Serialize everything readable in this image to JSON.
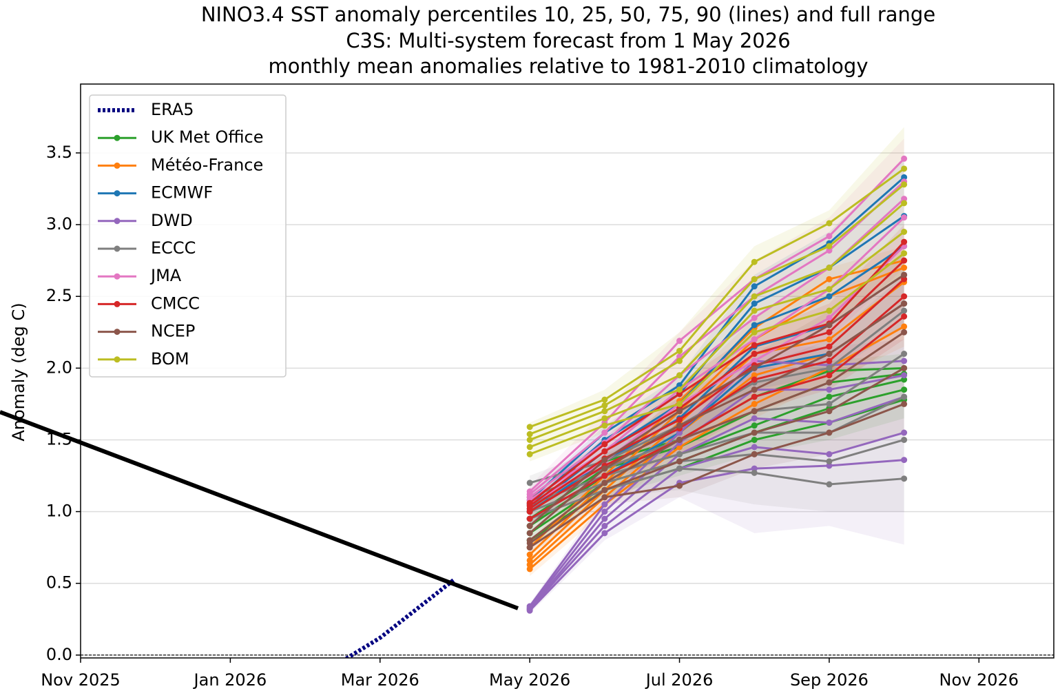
{
  "chart_data": {
    "type": "line",
    "title": [
      "NINO3.4 SST anomaly percentiles 10, 25, 50, 75, 90 (lines) and full range",
      "C3S: Multi-system forecast from 1 May 2026",
      "monthly mean anomalies relative to 1981-2010 climatology"
    ],
    "y_label": "Anomaly (deg C)",
    "xlim": [
      "2025-11",
      "2026-12"
    ],
    "xticks": [
      {
        "value": "2025-11",
        "label": "Nov 2025"
      },
      {
        "value": "2026-01",
        "label": "Jan 2026"
      },
      {
        "value": "2026-03",
        "label": "Mar 2026"
      },
      {
        "value": "2026-05",
        "label": "May 2026"
      },
      {
        "value": "2026-07",
        "label": "Jul 2026"
      },
      {
        "value": "2026-09",
        "label": "Sep 2026"
      },
      {
        "value": "2026-11",
        "label": "Nov 2026"
      }
    ],
    "ylim": [
      -0.02,
      3.98
    ],
    "yticks": [
      {
        "value": 0,
        "label": "0.0"
      },
      0.5,
      {
        "value": 1,
        "label": "1.0"
      },
      1.5,
      {
        "value": 2,
        "label": "2.0"
      },
      2.5,
      {
        "value": 3,
        "label": "3.0"
      },
      3.5
    ],
    "grid": true,
    "hline": 0,
    "legend": "upper left",
    "series": [
      {
        "name": "ERA5",
        "color": "#000080",
        "style": "dotted",
        "x": [
          "2026-02",
          "2026-03",
          "2026-04"
        ],
        "values": [
          -0.2,
          0.12,
          0.53
        ]
      },
      {
        "name": "UK Met Office",
        "color": "#2ca02c",
        "x": [
          "2026-05",
          "2026-06",
          "2026-07",
          "2026-08",
          "2026-09",
          "2026-10"
        ],
        "lines": [
          [
            0.8,
            1.15,
            1.3,
            1.5,
            1.62,
            1.78
          ],
          [
            0.85,
            1.2,
            1.35,
            1.55,
            1.72,
            1.85
          ],
          [
            0.9,
            1.25,
            1.4,
            1.6,
            1.8,
            1.92
          ],
          [
            0.95,
            1.3,
            1.45,
            1.7,
            1.9,
            1.96
          ],
          [
            1.0,
            1.35,
            1.5,
            1.8,
            1.98,
            2.0
          ]
        ],
        "range": {
          "low": [
            0.75,
            1.1,
            1.25,
            1.4,
            1.5,
            1.65
          ],
          "high": [
            1.05,
            1.4,
            1.6,
            1.9,
            2.05,
            2.1
          ]
        }
      },
      {
        "name": "Météo-France",
        "color": "#ff7f0e",
        "x": [
          "2026-05",
          "2026-06",
          "2026-07",
          "2026-08",
          "2026-09",
          "2026-10"
        ],
        "lines": [
          [
            0.6,
            1.05,
            1.45,
            1.75,
            2.0,
            2.29
          ],
          [
            0.63,
            1.1,
            1.55,
            1.95,
            2.1,
            2.45
          ],
          [
            0.66,
            1.15,
            1.62,
            2.1,
            2.2,
            2.6
          ],
          [
            0.7,
            1.2,
            1.7,
            2.2,
            2.5,
            2.7
          ],
          [
            0.75,
            1.25,
            1.77,
            2.28,
            2.62,
            2.75
          ]
        ],
        "range": {
          "low": [
            0.55,
            1.0,
            1.4,
            1.65,
            1.9,
            2.15
          ],
          "high": [
            0.8,
            1.3,
            1.85,
            2.35,
            2.7,
            2.85
          ]
        }
      },
      {
        "name": "ECMWF",
        "color": "#1f77b4",
        "x": [
          "2026-05",
          "2026-06",
          "2026-07",
          "2026-08",
          "2026-09",
          "2026-10"
        ],
        "lines": [
          [
            0.95,
            1.25,
            1.55,
            2.0,
            2.1,
            2.45
          ],
          [
            1.0,
            1.35,
            1.65,
            2.15,
            2.3,
            2.65
          ],
          [
            1.02,
            1.42,
            1.75,
            2.3,
            2.5,
            2.85
          ],
          [
            1.05,
            1.5,
            1.82,
            2.45,
            2.7,
            3.06
          ],
          [
            1.08,
            1.55,
            1.88,
            2.57,
            2.87,
            3.33
          ]
        ],
        "range": {
          "low": [
            0.9,
            1.2,
            1.45,
            1.85,
            1.95,
            2.3
          ],
          "high": [
            1.12,
            1.6,
            1.95,
            2.65,
            2.95,
            3.45
          ]
        }
      },
      {
        "name": "DWD",
        "color": "#9467bd",
        "x": [
          "2026-05",
          "2026-06",
          "2026-07",
          "2026-08",
          "2026-09",
          "2026-10"
        ],
        "lines": [
          [
            0.31,
            0.85,
            1.2,
            1.3,
            1.32,
            1.36
          ],
          [
            0.32,
            0.9,
            1.3,
            1.45,
            1.4,
            1.55
          ],
          [
            0.32,
            0.95,
            1.4,
            1.65,
            1.62,
            1.8
          ],
          [
            0.33,
            1.0,
            1.48,
            1.85,
            1.85,
            1.95
          ],
          [
            0.34,
            1.05,
            1.55,
            2.05,
            2.02,
            2.05
          ]
        ],
        "range": {
          "low": [
            0.29,
            0.8,
            1.1,
            0.85,
            0.9,
            0.77
          ],
          "high": [
            0.36,
            1.1,
            1.65,
            2.15,
            2.15,
            2.2
          ]
        }
      },
      {
        "name": "ECCC",
        "color": "#7f7f7f",
        "x": [
          "2026-05",
          "2026-06",
          "2026-07",
          "2026-08",
          "2026-09",
          "2026-10"
        ],
        "lines": [
          [
            0.95,
            1.15,
            1.3,
            1.27,
            1.19,
            1.23
          ],
          [
            1.0,
            1.2,
            1.35,
            1.4,
            1.35,
            1.5
          ],
          [
            1.05,
            1.25,
            1.4,
            1.55,
            1.55,
            1.8
          ],
          [
            1.1,
            1.3,
            1.5,
            1.7,
            1.75,
            2.1
          ],
          [
            1.2,
            1.35,
            1.6,
            1.9,
            2.0,
            2.4
          ]
        ],
        "range": {
          "low": [
            0.9,
            1.1,
            1.15,
            1.05,
            1.0,
            1.0
          ],
          "high": [
            1.25,
            1.45,
            1.7,
            2.0,
            2.2,
            2.65
          ]
        }
      },
      {
        "name": "JMA",
        "color": "#e377c2",
        "x": [
          "2026-05",
          "2026-06",
          "2026-07",
          "2026-08",
          "2026-09",
          "2026-10"
        ],
        "lines": [
          [
            1.05,
            1.35,
            1.75,
            2.05,
            2.35,
            2.85
          ],
          [
            1.08,
            1.42,
            1.85,
            2.2,
            2.55,
            3.05
          ],
          [
            1.1,
            1.48,
            1.95,
            2.35,
            2.7,
            3.18
          ],
          [
            1.12,
            1.55,
            2.08,
            2.5,
            2.82,
            3.3
          ],
          [
            1.14,
            1.62,
            2.19,
            2.62,
            2.92,
            3.46
          ]
        ],
        "range": {
          "low": [
            1.0,
            1.3,
            1.65,
            1.95,
            2.2,
            2.7
          ],
          "high": [
            1.18,
            1.7,
            2.25,
            2.75,
            3.05,
            3.6
          ]
        }
      },
      {
        "name": "CMCC",
        "color": "#d62728",
        "x": [
          "2026-05",
          "2026-06",
          "2026-07",
          "2026-08",
          "2026-09",
          "2026-10"
        ],
        "lines": [
          [
            0.95,
            1.25,
            1.5,
            1.8,
            1.95,
            2.36
          ],
          [
            1.0,
            1.32,
            1.58,
            1.92,
            2.05,
            2.5
          ],
          [
            1.02,
            1.37,
            1.64,
            2.02,
            2.15,
            2.62
          ],
          [
            1.04,
            1.42,
            1.72,
            2.1,
            2.25,
            2.75
          ],
          [
            1.06,
            1.47,
            1.82,
            2.16,
            2.31,
            2.88
          ]
        ],
        "range": {
          "low": [
            0.9,
            1.2,
            1.4,
            1.7,
            1.85,
            2.2
          ],
          "high": [
            1.1,
            1.52,
            1.9,
            2.25,
            2.45,
            3.0
          ]
        }
      },
      {
        "name": "NCEP",
        "color": "#8c564b",
        "x": [
          "2026-05",
          "2026-06",
          "2026-07",
          "2026-08",
          "2026-09",
          "2026-10"
        ],
        "lines": [
          [
            0.75,
            1.1,
            1.18,
            1.4,
            1.55,
            1.75
          ],
          [
            0.78,
            1.15,
            1.35,
            1.55,
            1.7,
            2.0
          ],
          [
            0.8,
            1.2,
            1.5,
            1.7,
            1.9,
            2.25
          ],
          [
            0.85,
            1.3,
            1.6,
            1.85,
            2.1,
            2.45
          ],
          [
            0.9,
            1.36,
            1.7,
            2.0,
            2.3,
            2.65
          ]
        ],
        "range": {
          "low": [
            0.7,
            1.05,
            1.1,
            1.3,
            1.4,
            1.55
          ],
          "high": [
            0.95,
            1.4,
            1.8,
            2.1,
            2.4,
            2.8
          ]
        }
      },
      {
        "name": "BOM",
        "color": "#bcbd22",
        "x": [
          "2026-05",
          "2026-06",
          "2026-07",
          "2026-08",
          "2026-09",
          "2026-10"
        ],
        "lines": [
          [
            1.4,
            1.6,
            1.75,
            2.25,
            2.4,
            2.8
          ],
          [
            1.45,
            1.65,
            1.85,
            2.4,
            2.55,
            2.95
          ],
          [
            1.5,
            1.7,
            1.95,
            2.5,
            2.7,
            3.15
          ],
          [
            1.54,
            1.74,
            2.05,
            2.62,
            2.85,
            3.28
          ],
          [
            1.59,
            1.78,
            2.12,
            2.74,
            3.01,
            3.39
          ]
        ],
        "range": {
          "low": [
            1.35,
            1.55,
            1.65,
            2.1,
            2.3,
            2.65
          ],
          "high": [
            1.62,
            1.85,
            2.25,
            2.85,
            3.1,
            3.68
          ]
        }
      }
    ]
  }
}
